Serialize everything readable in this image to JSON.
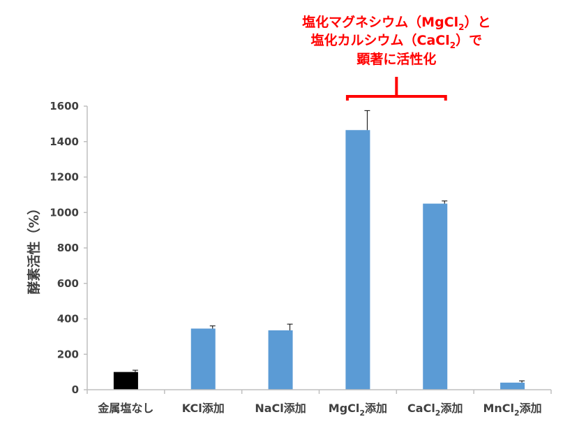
{
  "chart_data": {
    "type": "bar",
    "ylabel": "酵素活性（%）",
    "ylim": [
      0,
      1600
    ],
    "yticks": [
      0,
      200,
      400,
      600,
      800,
      1000,
      1200,
      1400,
      1600
    ],
    "categories": [
      {
        "label": "金属塩なし"
      },
      {
        "label": "KCl添加"
      },
      {
        "label": "NaCl添加"
      },
      {
        "label": "MgCl",
        "sub": "2",
        "suffix": "添加"
      },
      {
        "label": "CaCl",
        "sub": "2",
        "suffix": "添加"
      },
      {
        "label": "MnCl",
        "sub": "2",
        "suffix": "添加"
      }
    ],
    "values": [
      100,
      345,
      335,
      1465,
      1050,
      40
    ],
    "errors": [
      10,
      15,
      35,
      110,
      15,
      10
    ],
    "colors": [
      "#000000",
      "#5b9bd5",
      "#5b9bd5",
      "#5b9bd5",
      "#5b9bd5",
      "#5b9bd5"
    ],
    "grid": false,
    "annotation": {
      "color": "#ff0000",
      "bracket_categories": [
        3,
        4
      ],
      "lines": [
        [
          {
            "t": "塩化マグネシウム（MgCl"
          },
          {
            "t": "2",
            "sub": true
          },
          {
            "t": "）と"
          }
        ],
        [
          {
            "t": "塩化カルシウム（CaCl"
          },
          {
            "t": "2",
            "sub": true
          },
          {
            "t": "）で"
          }
        ],
        [
          {
            "t": "顕著に活性化"
          }
        ]
      ]
    }
  }
}
